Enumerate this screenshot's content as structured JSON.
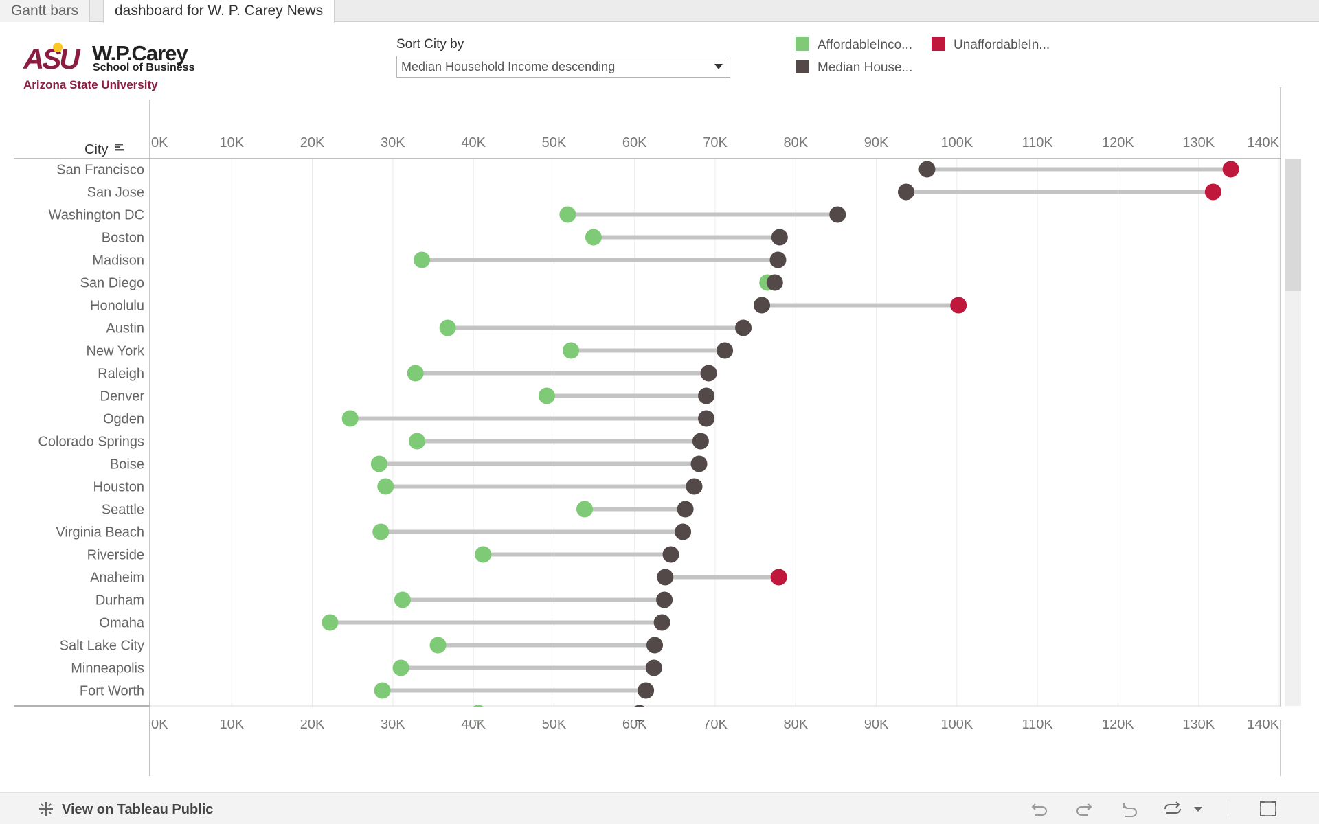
{
  "tabs": [
    {
      "label": "Gantt bars",
      "active": false
    },
    {
      "label": "dashboard for W. P. Carey News",
      "active": true
    }
  ],
  "logo": {
    "asu": "ASU",
    "school_line1": "W.P.Carey",
    "school_line2": "School of Business",
    "university": "Arizona State University"
  },
  "sort": {
    "label": "Sort City by",
    "selected": "Median Household Income descending"
  },
  "legend": [
    {
      "label": "AffordableInco...",
      "color": "#7fca76"
    },
    {
      "label": "UnaffordableIn...",
      "color": "#c0183d"
    },
    {
      "label": "Median House...",
      "color": "#524948"
    }
  ],
  "colors": {
    "affordable": "#7fca76",
    "unaffordable": "#c0183d",
    "median": "#524948",
    "connector": "#c4c4c4"
  },
  "chart_data": {
    "type": "scatter",
    "row_header": "City",
    "xlim": [
      0,
      140000
    ],
    "ticks": [
      "0K",
      "10K",
      "20K",
      "30K",
      "40K",
      "50K",
      "60K",
      "70K",
      "80K",
      "90K",
      "100K",
      "110K",
      "120K",
      "130K",
      "140K"
    ],
    "rows": [
      {
        "city": "San Francisco",
        "median": 96300,
        "income": 134000,
        "status": "unaffordable"
      },
      {
        "city": "San Jose",
        "median": 93700,
        "income": 131800,
        "status": "unaffordable"
      },
      {
        "city": "Washington DC",
        "median": 85200,
        "income": 51700,
        "status": "affordable"
      },
      {
        "city": "Boston",
        "median": 78000,
        "income": 54900,
        "status": "affordable"
      },
      {
        "city": "Madison",
        "median": 77800,
        "income": 33600,
        "status": "affordable"
      },
      {
        "city": "San Diego",
        "median": 77400,
        "income": 76500,
        "status": "affordable"
      },
      {
        "city": "Honolulu",
        "median": 75800,
        "income": 100200,
        "status": "unaffordable"
      },
      {
        "city": "Austin",
        "median": 73500,
        "income": 36800,
        "status": "affordable"
      },
      {
        "city": "New York",
        "median": 71200,
        "income": 52100,
        "status": "affordable"
      },
      {
        "city": "Raleigh",
        "median": 69200,
        "income": 32800,
        "status": "affordable"
      },
      {
        "city": "Denver",
        "median": 68900,
        "income": 49100,
        "status": "affordable"
      },
      {
        "city": "Ogden",
        "median": 68900,
        "income": 24700,
        "status": "affordable"
      },
      {
        "city": "Colorado Springs",
        "median": 68200,
        "income": 33000,
        "status": "affordable"
      },
      {
        "city": "Boise",
        "median": 68000,
        "income": 28300,
        "status": "affordable"
      },
      {
        "city": "Houston",
        "median": 67400,
        "income": 29100,
        "status": "affordable"
      },
      {
        "city": "Seattle",
        "median": 66300,
        "income": 53800,
        "status": "affordable"
      },
      {
        "city": "Virginia Beach",
        "median": 66000,
        "income": 28500,
        "status": "affordable"
      },
      {
        "city": "Riverside",
        "median": 64500,
        "income": 41200,
        "status": "affordable"
      },
      {
        "city": "Anaheim",
        "median": 63800,
        "income": 77900,
        "status": "unaffordable"
      },
      {
        "city": "Durham",
        "median": 63700,
        "income": 31200,
        "status": "affordable"
      },
      {
        "city": "Omaha",
        "median": 63400,
        "income": 22200,
        "status": "affordable"
      },
      {
        "city": "Salt Lake City",
        "median": 62500,
        "income": 35600,
        "status": "affordable"
      },
      {
        "city": "Minneapolis",
        "median": 62400,
        "income": 31000,
        "status": "affordable"
      },
      {
        "city": "Fort Worth",
        "median": 61400,
        "income": 28700,
        "status": "affordable"
      }
    ]
  },
  "footer": {
    "view_on": "View on Tableau Public"
  }
}
